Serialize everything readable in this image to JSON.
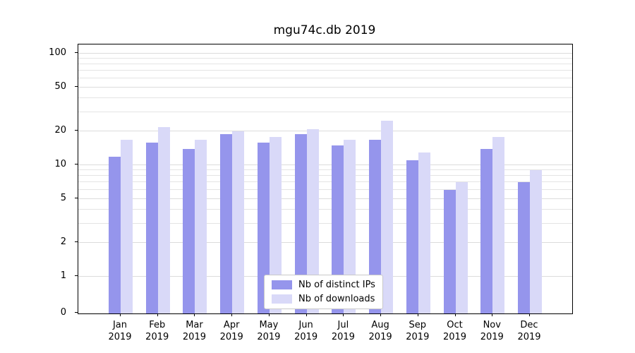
{
  "chart_data": {
    "type": "bar",
    "title": "mgu74c.db 2019",
    "categories": [
      "Jan",
      "Feb",
      "Mar",
      "Apr",
      "May",
      "Jun",
      "Jul",
      "Aug",
      "Sep",
      "Oct",
      "Nov",
      "Dec"
    ],
    "year_label": "2019",
    "series": [
      {
        "name": "Nb of distinct IPs",
        "color": "#9595ec",
        "values": [
          12,
          16,
          14,
          19,
          16,
          19,
          15,
          17,
          11,
          6,
          14,
          7
        ]
      },
      {
        "name": "Nb of downloads",
        "color": "#d9d9f8",
        "values": [
          17,
          22,
          17,
          20,
          18,
          21,
          17,
          25,
          13,
          7,
          18,
          9
        ]
      }
    ],
    "yscale": "symlog",
    "yticks": [
      0,
      1,
      2,
      5,
      10,
      20,
      50,
      100
    ],
    "minor_gridlines": [
      3,
      4,
      6,
      7,
      8,
      9,
      30,
      40,
      60,
      70,
      80,
      90
    ],
    "ylim": [
      0,
      100
    ],
    "grid": true,
    "legend_position": "lower center"
  }
}
